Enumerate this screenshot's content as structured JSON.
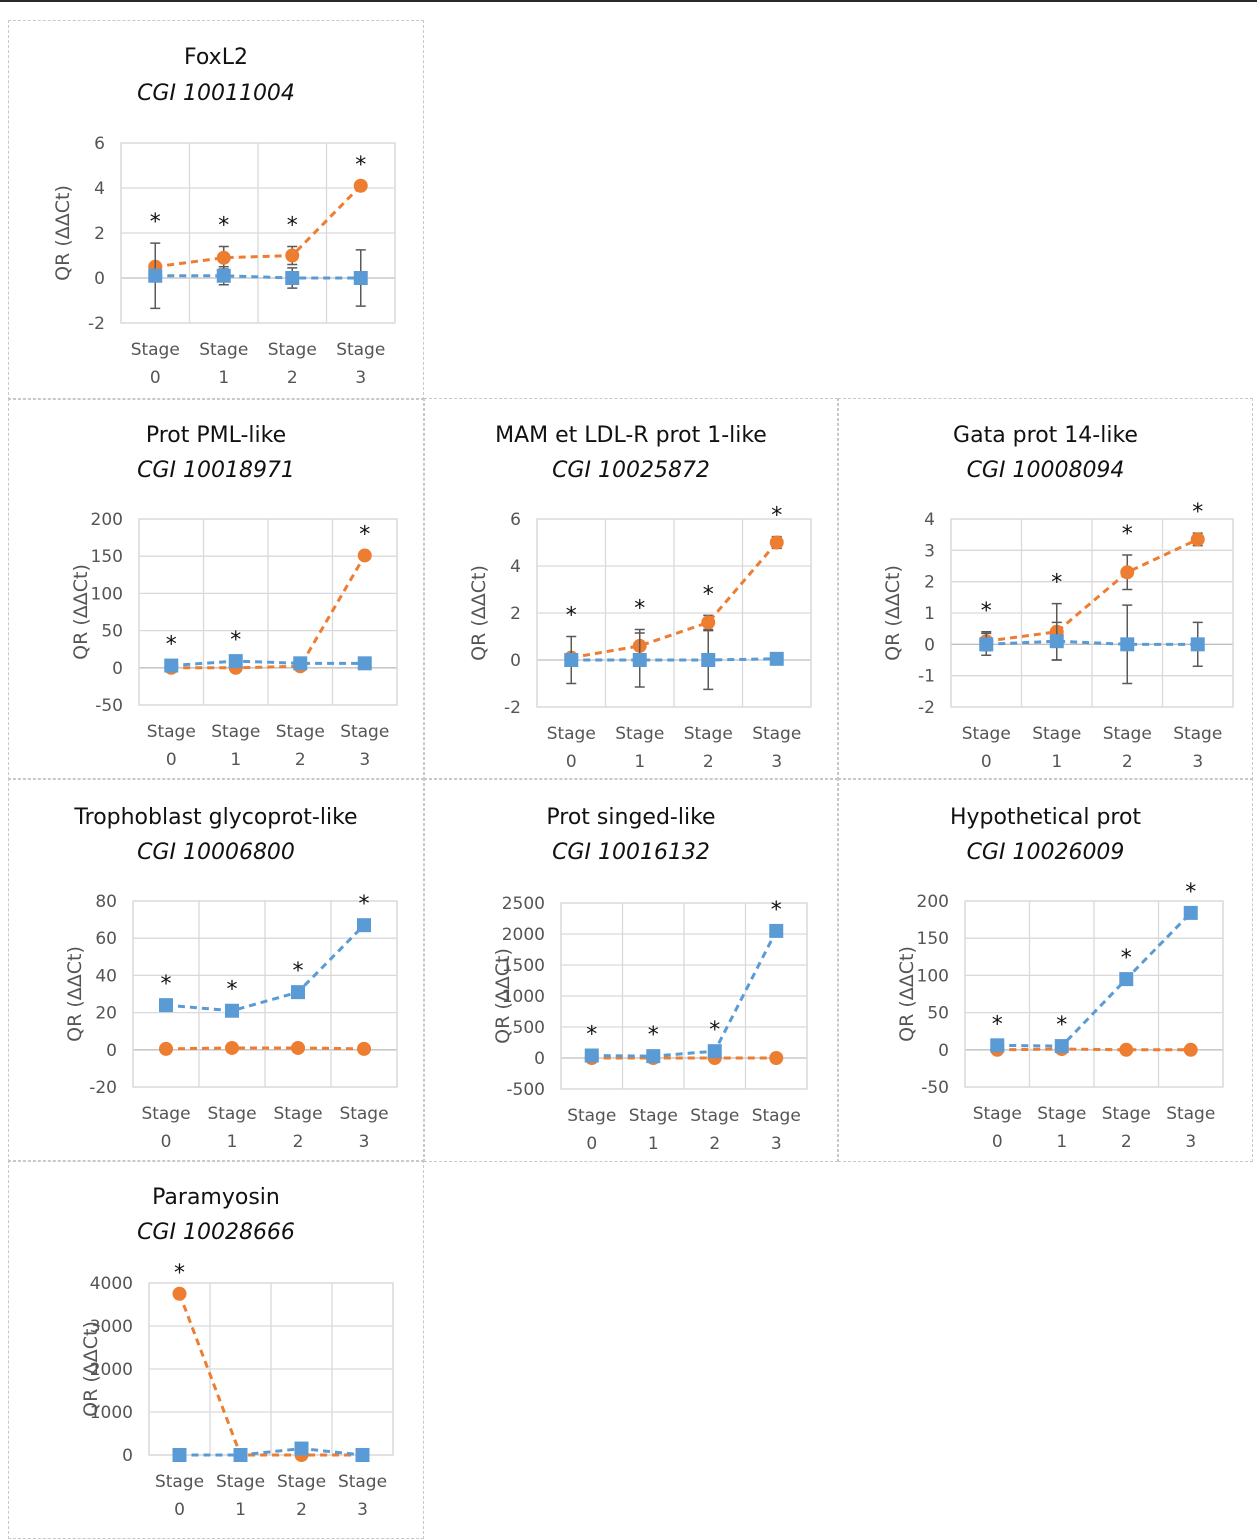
{
  "colors": {
    "orange": "#ED7D31",
    "blue": "#5B9BD5",
    "grid": "#D9D9D9",
    "axis": "#BFBFBF",
    "error": "#595959"
  },
  "chart_data": [
    {
      "type": "line",
      "title": "FoxL2",
      "subtitle": "CGI 10011004",
      "ylabel": "QR (ΔΔCt)",
      "categories": [
        "Stage 0",
        "Stage 1",
        "Stage 2",
        "Stage 3"
      ],
      "ylim": [
        -2,
        6
      ],
      "yticks": [
        -2,
        0,
        2,
        4,
        6
      ],
      "series": [
        {
          "color": "orange",
          "marker": "circle",
          "values": [
            0.5,
            0.9,
            1.0,
            4.1
          ],
          "errors": [
            0,
            0.5,
            0.4,
            0
          ]
        },
        {
          "color": "blue",
          "marker": "square",
          "values": [
            0.1,
            0.1,
            0.0,
            0.0
          ],
          "errors": [
            1.45,
            0.4,
            0.45,
            1.25
          ]
        }
      ],
      "stars": [
        0,
        1,
        2,
        3
      ]
    },
    {
      "type": "line",
      "title": "Prot PML-like",
      "subtitle": "CGI 10018971",
      "ylabel": "QR (ΔΔCt)",
      "categories": [
        "Stage 0",
        "Stage 1",
        "Stage 2",
        "Stage 3"
      ],
      "ylim": [
        -50,
        200
      ],
      "yticks": [
        -50,
        0,
        50,
        100,
        150,
        200
      ],
      "series": [
        {
          "color": "orange",
          "marker": "circle",
          "values": [
            0,
            0,
            2,
            151
          ],
          "errors": [
            0,
            0,
            0,
            0
          ]
        },
        {
          "color": "blue",
          "marker": "square",
          "values": [
            3,
            9,
            6,
            6
          ],
          "errors": [
            0,
            0,
            0,
            0
          ]
        }
      ],
      "stars": [
        0,
        1,
        3
      ]
    },
    {
      "type": "line",
      "title": "MAM et LDL-R prot 1-like",
      "subtitle": "CGI 10025872",
      "ylabel": "QR (ΔΔCt)",
      "categories": [
        "Stage 0",
        "Stage 1",
        "Stage 2",
        "Stage 3"
      ],
      "ylim": [
        -2,
        6
      ],
      "yticks": [
        -2,
        0,
        2,
        4,
        6
      ],
      "series": [
        {
          "color": "orange",
          "marker": "circle",
          "values": [
            0.1,
            0.6,
            1.6,
            5.0
          ],
          "errors": [
            0,
            0.7,
            0.3,
            0.25
          ]
        },
        {
          "color": "blue",
          "marker": "square",
          "values": [
            0.0,
            0.0,
            0.0,
            0.05
          ],
          "errors": [
            1.0,
            1.15,
            1.25,
            0
          ]
        }
      ],
      "stars": [
        0,
        1,
        2,
        3
      ]
    },
    {
      "type": "line",
      "title": "Gata prot 14-like",
      "subtitle": "CGI 10008094",
      "ylabel": "QR (ΔΔCt)",
      "categories": [
        "Stage 0",
        "Stage 1",
        "Stage 2",
        "Stage 3"
      ],
      "ylim": [
        -2,
        4
      ],
      "yticks": [
        -2,
        -1,
        0,
        1,
        2,
        3,
        4
      ],
      "series": [
        {
          "color": "orange",
          "marker": "circle",
          "values": [
            0.1,
            0.4,
            2.3,
            3.35
          ],
          "errors": [
            0.3,
            0.9,
            0.55,
            0.2
          ]
        },
        {
          "color": "blue",
          "marker": "square",
          "values": [
            0.0,
            0.1,
            0.0,
            0.0
          ],
          "errors": [
            0.35,
            0.6,
            1.25,
            0.7
          ]
        }
      ],
      "stars": [
        0,
        1,
        2,
        3
      ]
    },
    {
      "type": "line",
      "title": "Trophoblast glycoprot-like",
      "subtitle": "CGI 10006800",
      "ylabel": "QR (ΔΔCt)",
      "categories": [
        "Stage 0",
        "Stage 1",
        "Stage 2",
        "Stage 3"
      ],
      "ylim": [
        -20,
        80
      ],
      "yticks": [
        -20,
        0,
        20,
        40,
        60,
        80
      ],
      "series": [
        {
          "color": "orange",
          "marker": "circle",
          "values": [
            0.5,
            1,
            1,
            0.5
          ],
          "errors": [
            0,
            0,
            0,
            0
          ]
        },
        {
          "color": "blue",
          "marker": "square",
          "values": [
            24,
            21,
            31,
            67
          ],
          "errors": [
            0,
            0,
            0,
            0
          ]
        }
      ],
      "stars": [
        0,
        1,
        2,
        3
      ]
    },
    {
      "type": "line",
      "title": "Prot singed-like",
      "subtitle": "CGI 10016132",
      "ylabel": "QR (ΔΔCt)",
      "categories": [
        "Stage 0",
        "Stage 1",
        "Stage 2",
        "Stage 3"
      ],
      "ylim": [
        -500,
        2500
      ],
      "yticks": [
        -500,
        0,
        500,
        1000,
        1500,
        2000,
        2500
      ],
      "series": [
        {
          "color": "orange",
          "marker": "circle",
          "values": [
            0,
            0,
            0,
            0
          ],
          "errors": [
            0,
            0,
            0,
            0
          ]
        },
        {
          "color": "blue",
          "marker": "square",
          "values": [
            40,
            30,
            110,
            2050
          ],
          "errors": [
            0,
            0,
            0,
            0
          ]
        }
      ],
      "stars": [
        0,
        1,
        2,
        3
      ]
    },
    {
      "type": "line",
      "title": "Hypothetical prot",
      "subtitle": "CGI 10026009",
      "ylabel": "QR (ΔΔCt)",
      "categories": [
        "Stage 0",
        "Stage 1",
        "Stage 2",
        "Stage 3"
      ],
      "ylim": [
        -50,
        200
      ],
      "yticks": [
        -50,
        0,
        50,
        100,
        150,
        200
      ],
      "series": [
        {
          "color": "orange",
          "marker": "circle",
          "values": [
            0,
            1,
            0,
            0
          ],
          "errors": [
            0,
            0,
            0,
            0
          ]
        },
        {
          "color": "blue",
          "marker": "square",
          "values": [
            6,
            5,
            95,
            184
          ],
          "errors": [
            0,
            0,
            0,
            0
          ]
        }
      ],
      "stars": [
        0,
        1,
        2,
        3
      ]
    },
    {
      "type": "line",
      "title": "Paramyosin",
      "subtitle": "CGI 10028666",
      "ylabel": "QR (ΔΔCt)",
      "categories": [
        "Stage 0",
        "Stage 1",
        "Stage 2",
        "Stage 3"
      ],
      "ylim": [
        0,
        4000
      ],
      "yticks": [
        0,
        1000,
        2000,
        3000,
        4000
      ],
      "series": [
        {
          "color": "orange",
          "marker": "circle",
          "values": [
            3750,
            0,
            0,
            0
          ],
          "errors": [
            0,
            0,
            0,
            0
          ]
        },
        {
          "color": "blue",
          "marker": "square",
          "values": [
            0,
            0,
            150,
            0
          ],
          "errors": [
            0,
            0,
            0,
            0
          ]
        }
      ],
      "stars": [
        0
      ]
    }
  ]
}
